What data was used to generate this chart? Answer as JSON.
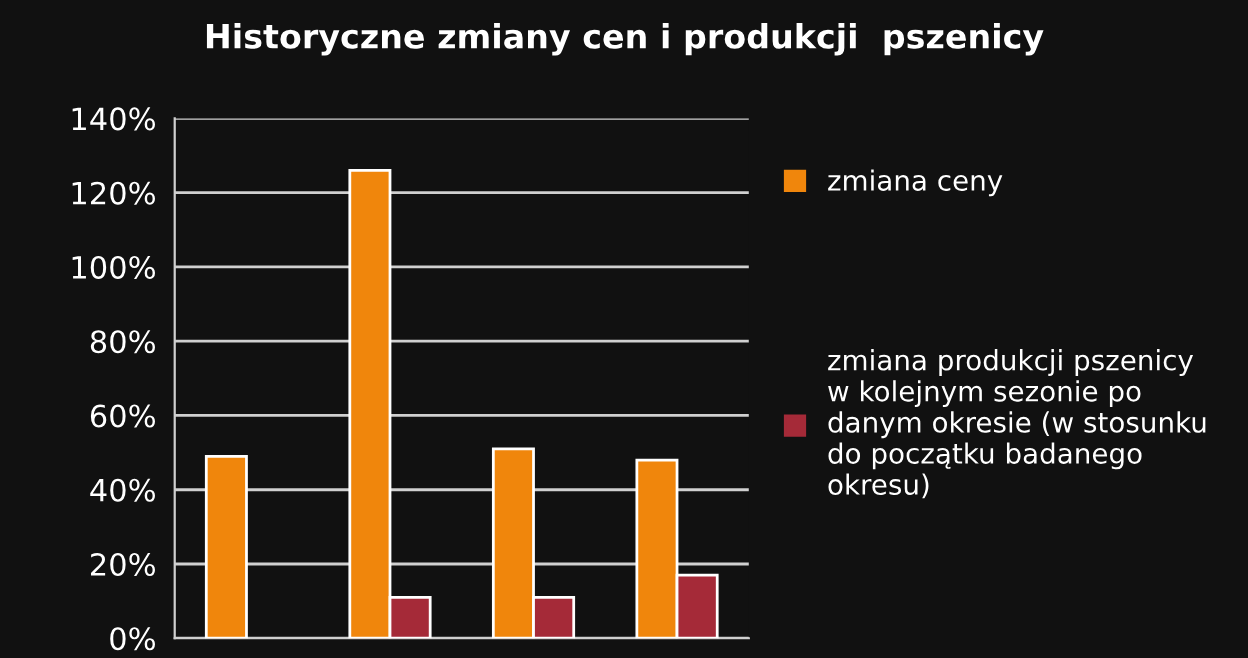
{
  "chart_data": {
    "type": "bar",
    "title": "Historyczne zmiany cen i produkcji  pszenicy",
    "categories": [
      null,
      null,
      null,
      null
    ],
    "series": [
      {
        "name": "zmiana ceny",
        "color": "#f0860c",
        "values": [
          49,
          126,
          51,
          48
        ]
      },
      {
        "name": "zmiana produkcji pszenicy w kolejnym sezonie po danym okresie (w stosunku do początku badanego okresu)",
        "color": "#a52a38",
        "values": [
          null,
          11,
          11,
          17
        ]
      }
    ],
    "ylim": [
      0,
      140
    ],
    "yticks": [
      {
        "value": 0,
        "label": "0%"
      },
      {
        "value": 20,
        "label": "20%"
      },
      {
        "value": 40,
        "label": "40%"
      },
      {
        "value": 60,
        "label": "60%"
      },
      {
        "value": 80,
        "label": "80%"
      },
      {
        "value": 100,
        "label": "100%"
      },
      {
        "value": 120,
        "label": "120%"
      },
      {
        "value": 140,
        "label": "140%"
      }
    ],
    "grid": "y",
    "legend": "right"
  }
}
